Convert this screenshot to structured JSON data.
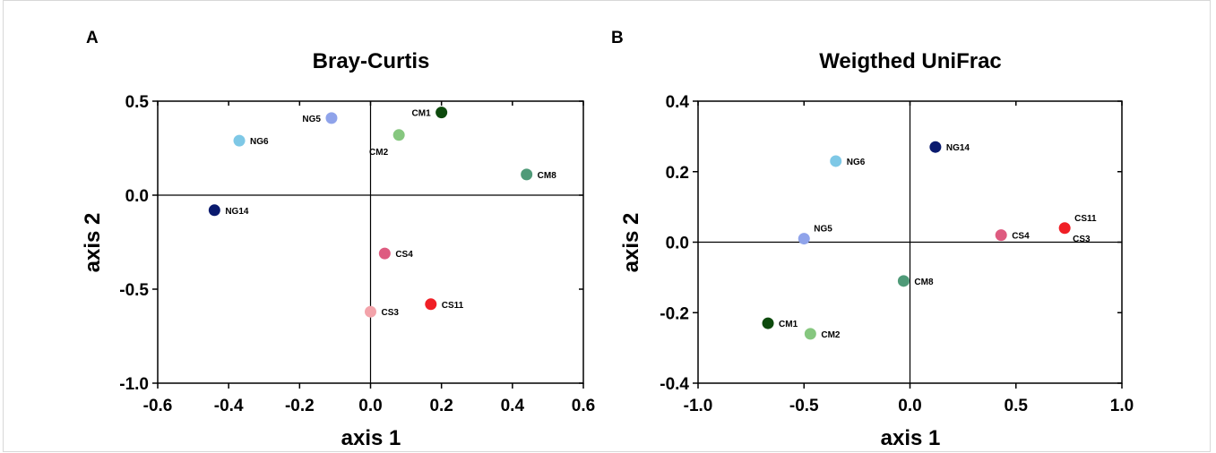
{
  "chart_data": [
    {
      "type": "scatter",
      "panel": "A",
      "title": "Bray-Curtis",
      "xlabel": "axis 1",
      "ylabel": "axis 2",
      "xlim": [
        -0.6,
        0.6
      ],
      "ylim": [
        -1.0,
        0.5
      ],
      "xticks": [
        -0.6,
        -0.4,
        -0.2,
        0.0,
        0.2,
        0.4,
        0.6
      ],
      "yticks": [
        -1.0,
        -0.5,
        0.0,
        0.5
      ],
      "xtick_labels": [
        "-0.6",
        "-0.4",
        "-0.2",
        "0.0",
        "0.2",
        "0.4",
        "0.6"
      ],
      "ytick_labels": [
        "-1.0",
        "-0.5",
        "0.0",
        "0.5"
      ],
      "zero_lines": true,
      "points": [
        {
          "label": "NG5",
          "x": -0.11,
          "y": 0.41,
          "color": "#8fa3ea",
          "label_side": "left"
        },
        {
          "label": "NG6",
          "x": -0.37,
          "y": 0.29,
          "color": "#7ec8e6",
          "label_side": "right"
        },
        {
          "label": "NG14",
          "x": -0.44,
          "y": -0.08,
          "color": "#0a1a6e",
          "label_side": "right"
        },
        {
          "label": "CM1",
          "x": 0.2,
          "y": 0.44,
          "color": "#0d4a0d",
          "label_side": "left"
        },
        {
          "label": "CM2",
          "x": 0.08,
          "y": 0.32,
          "color": "#86c77f",
          "label_side": "below-left"
        },
        {
          "label": "CM8",
          "x": 0.44,
          "y": 0.11,
          "color": "#4f9a78",
          "label_side": "right"
        },
        {
          "label": "CS4",
          "x": 0.04,
          "y": -0.31,
          "color": "#de5b80",
          "label_side": "right"
        },
        {
          "label": "CS11",
          "x": 0.17,
          "y": -0.58,
          "color": "#f01f26",
          "label_side": "right"
        },
        {
          "label": "CS3",
          "x": 0.0,
          "y": -0.62,
          "color": "#f3a3aa",
          "label_side": "right"
        }
      ]
    },
    {
      "type": "scatter",
      "panel": "B",
      "title": "Weigthed UniFrac",
      "xlabel": "axis 1",
      "ylabel": "axis 2",
      "xlim": [
        -1.0,
        1.0
      ],
      "ylim": [
        -0.4,
        0.4
      ],
      "xticks": [
        -1.0,
        -0.5,
        0.0,
        0.5,
        1.0
      ],
      "yticks": [
        -0.4,
        -0.2,
        0.0,
        0.2,
        0.4
      ],
      "xtick_labels": [
        "-1.0",
        "-0.5",
        "0.0",
        "0.5",
        "1.0"
      ],
      "ytick_labels": [
        "-0.4",
        "-0.2",
        "0.0",
        "0.2",
        "0.4"
      ],
      "zero_lines": true,
      "points": [
        {
          "label": "NG14",
          "x": 0.12,
          "y": 0.27,
          "color": "#0a1a6e",
          "label_side": "right"
        },
        {
          "label": "NG6",
          "x": -0.35,
          "y": 0.23,
          "color": "#7ec8e6",
          "label_side": "right"
        },
        {
          "label": "NG5",
          "x": -0.5,
          "y": 0.01,
          "color": "#8fa3ea",
          "label_side": "above-right"
        },
        {
          "label": "CS4",
          "x": 0.43,
          "y": 0.02,
          "color": "#de5b80",
          "label_side": "right"
        },
        {
          "label": "CS11",
          "x": 0.73,
          "y": 0.04,
          "color": "#f01f26",
          "label_side": "above-right"
        },
        {
          "label": "CS3",
          "x": 0.73,
          "y": 0.04,
          "color": "#f01f26",
          "label_side": "below-right",
          "label_only": true
        },
        {
          "label": "CM8",
          "x": -0.03,
          "y": -0.11,
          "color": "#4f9a78",
          "label_side": "right"
        },
        {
          "label": "CM1",
          "x": -0.67,
          "y": -0.23,
          "color": "#0d4a0d",
          "label_side": "right"
        },
        {
          "label": "CM2",
          "x": -0.47,
          "y": -0.26,
          "color": "#86c77f",
          "label_side": "right"
        }
      ]
    }
  ]
}
